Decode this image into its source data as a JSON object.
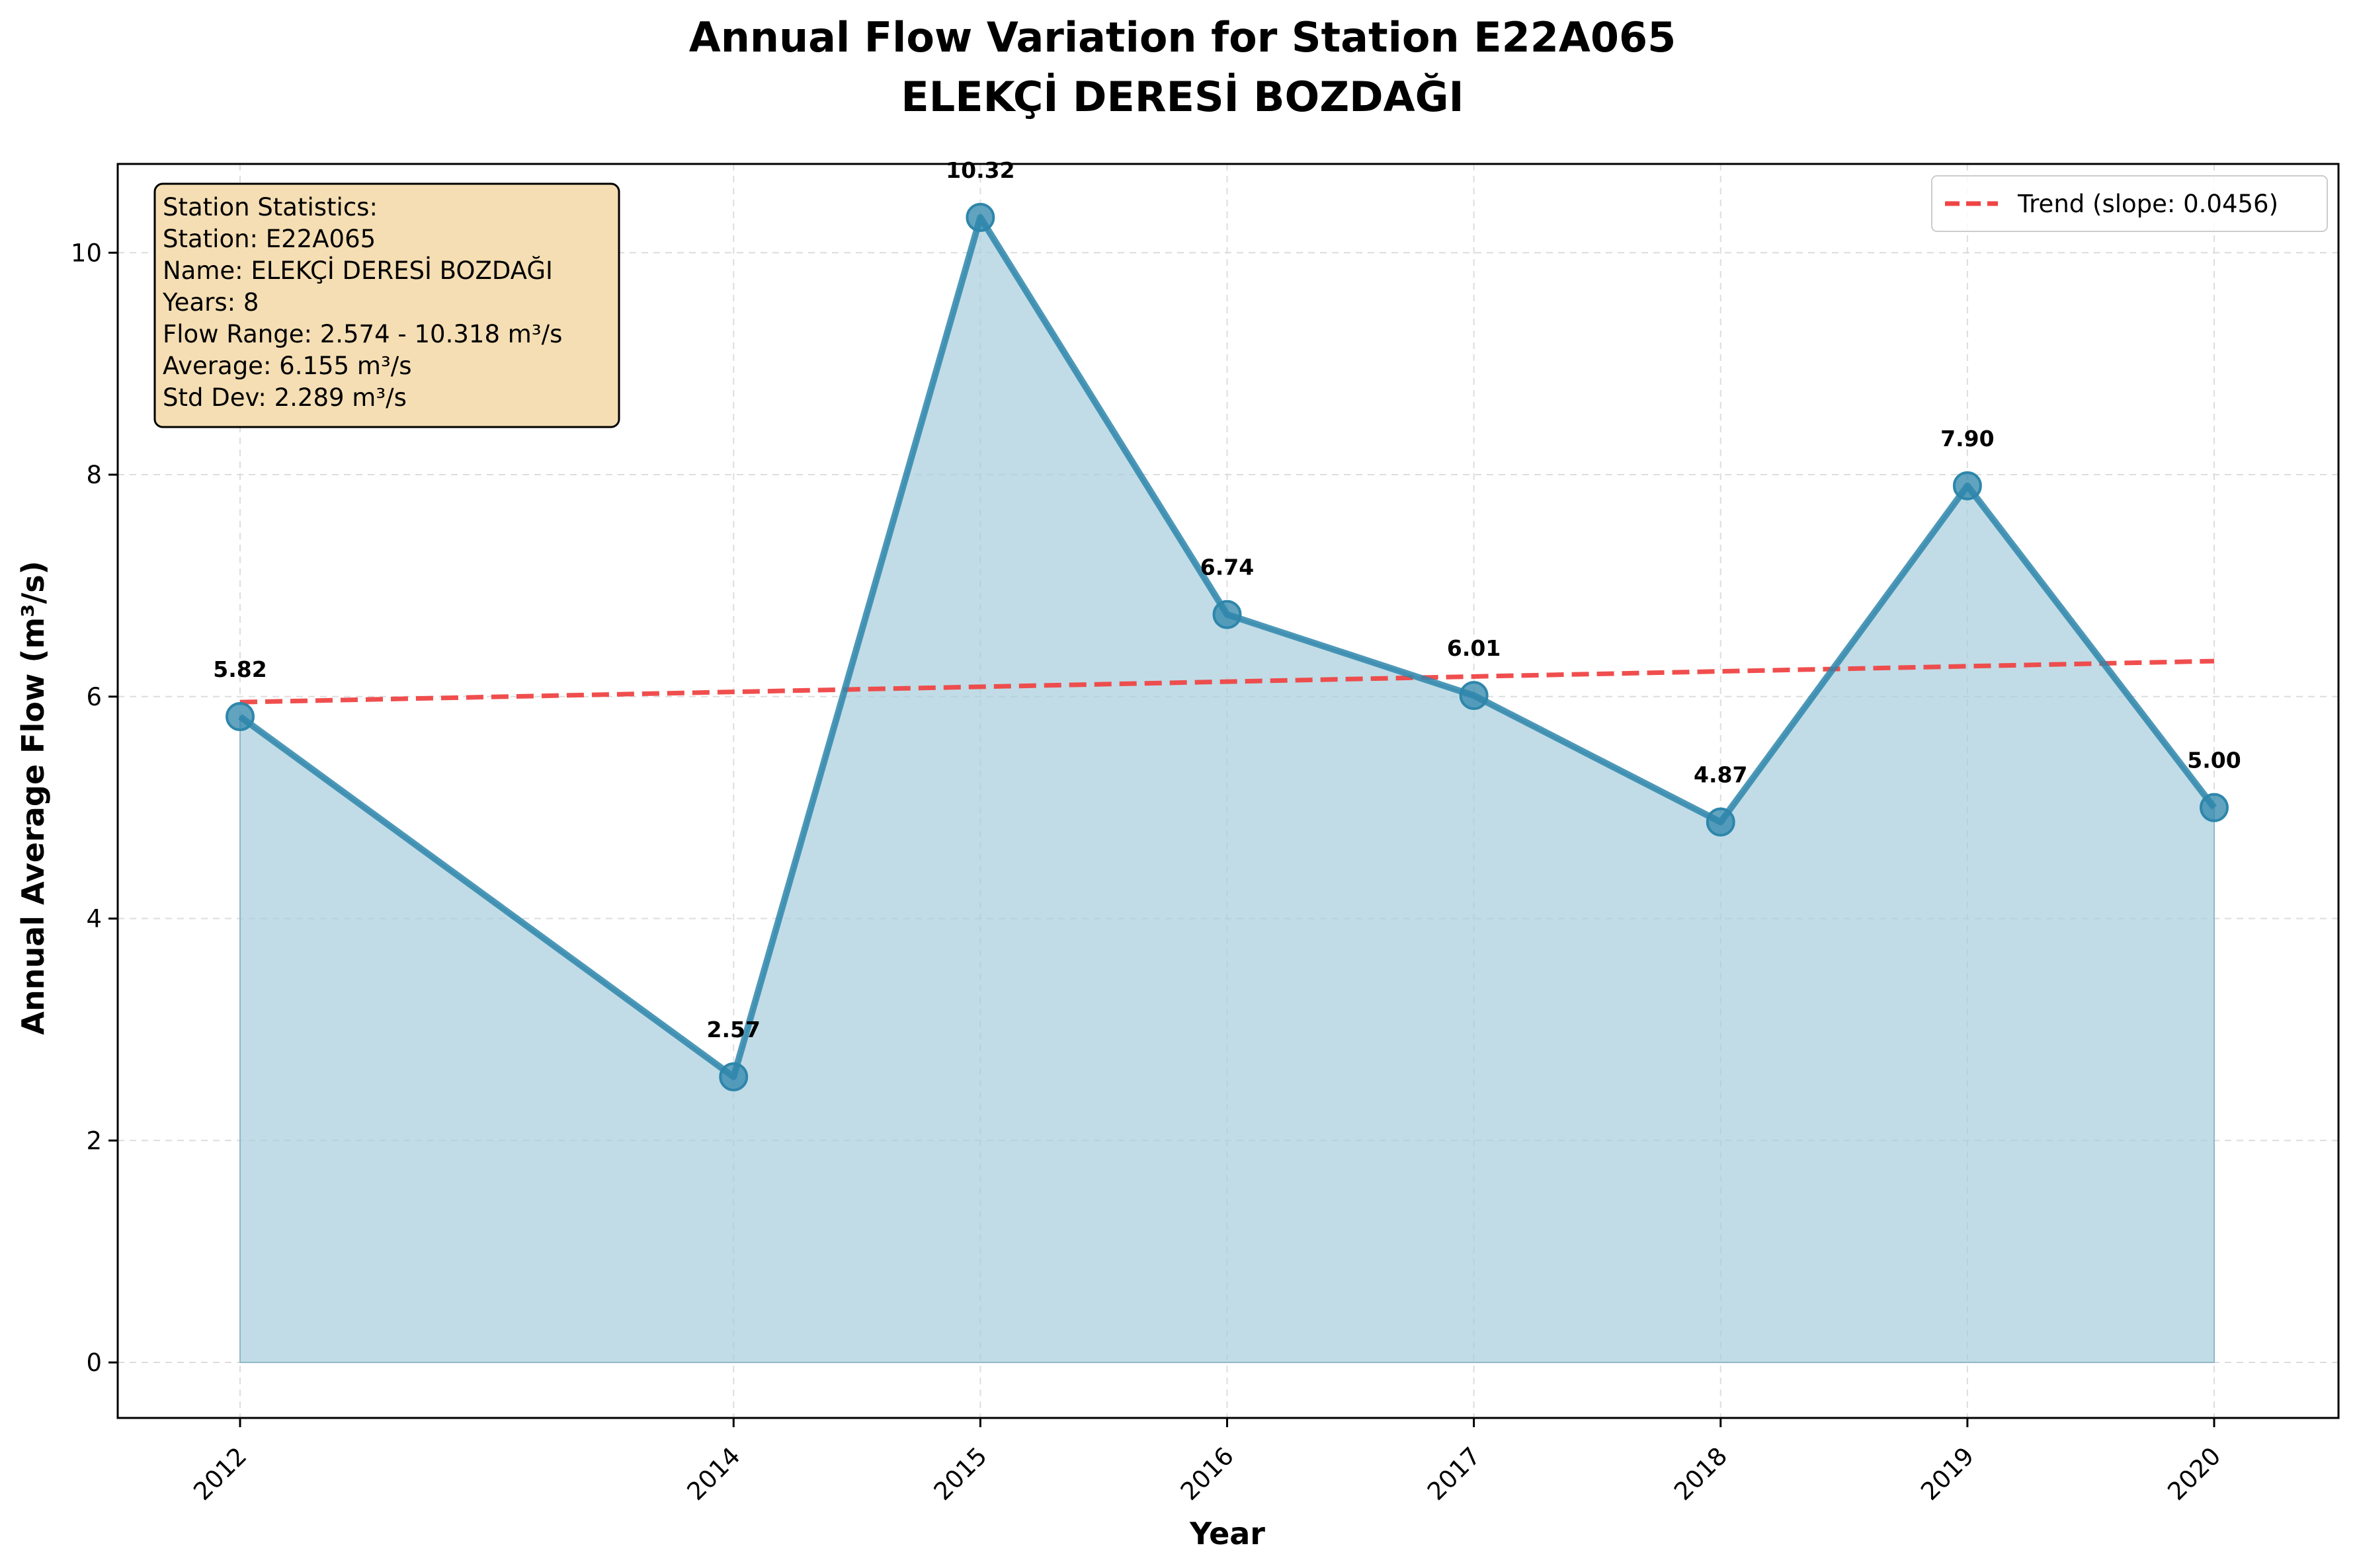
{
  "chart_data": {
    "type": "line",
    "title": "Annual Flow Variation for Station E22A065",
    "subtitle": "ELEKÇİ DERESİ BOZDAĞI",
    "xlabel": "Year",
    "ylabel": "Annual Average Flow (m³/s)",
    "x": [
      2012,
      2014,
      2015,
      2016,
      2017,
      2018,
      2019,
      2020
    ],
    "x_tick_labels": [
      "2012",
      "2014",
      "2015",
      "2016",
      "2017",
      "2018",
      "2019",
      "2020"
    ],
    "xlim": [
      2011.5,
      2020.5
    ],
    "ylim": [
      -0.5,
      10.8
    ],
    "y_ticks": [
      0,
      2,
      4,
      6,
      8,
      10
    ],
    "y_tick_labels": [
      "0",
      "2",
      "4",
      "6",
      "8",
      "10"
    ],
    "grid": true,
    "x_axis_categorical": true,
    "series": [
      {
        "values": [
          5.82,
          2.574,
          10.318,
          6.74,
          6.01,
          4.87,
          7.9,
          5.0
        ],
        "color": "#2e86ab",
        "area_fill": true,
        "markers": "circle"
      }
    ],
    "data_labels": [
      "5.82",
      "2.57",
      "10.32",
      "6.74",
      "6.01",
      "4.87",
      "7.90",
      "5.00"
    ],
    "trend": {
      "name": "Trend (slope: 0.0456)",
      "slope": 0.0456,
      "start": 5.95,
      "end": 6.32,
      "color": "#ef4444",
      "style": "dashed"
    },
    "legend_placement": "top-right",
    "stats_box": {
      "lines": [
        "Station Statistics:",
        "Station: E22A065",
        "Name: ELEKÇİ DERESİ BOZDAĞI",
        "Years: 8",
        "Flow Range: 2.574 - 10.318 m³/s",
        "Average: 6.155 m³/s",
        "Std Dev: 2.289 m³/s"
      ],
      "placement": "top-left",
      "background": "#f5deb3"
    }
  }
}
